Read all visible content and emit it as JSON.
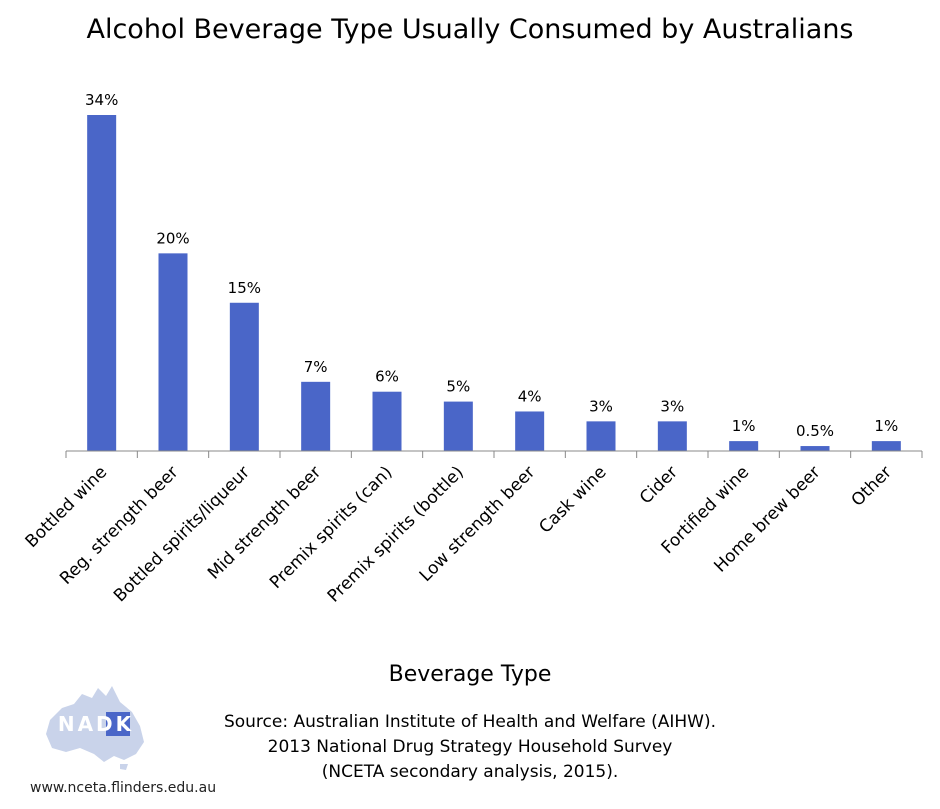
{
  "chart_data": {
    "type": "bar",
    "title": "Alcohol Beverage Type Usually Consumed by Australians",
    "xlabel": "Beverage Type",
    "ylabel": "",
    "categories": [
      "Bottled wine",
      "Reg. strength beer",
      "Bottled spirits/liqueur",
      "Mid strength beer",
      "Premix spirits (can)",
      "Premix spirits (bottle)",
      "Low strength beer",
      "Cask wine",
      "Cider",
      "Fortified wine",
      "Home brew beer",
      "Other"
    ],
    "values": [
      34,
      20,
      15,
      7,
      6,
      5,
      4,
      3,
      3,
      1,
      0.5,
      1
    ],
    "value_labels": [
      "34%",
      "20%",
      "15%",
      "7%",
      "6%",
      "5%",
      "4%",
      "3%",
      "3%",
      "1%",
      "0.5%",
      "1%"
    ],
    "ylim": [
      0,
      34
    ],
    "grid": false,
    "bar_color": "#4a66c8"
  },
  "source": {
    "lines": [
      "Source: Australian Institute of Health and Welfare (AIHW).",
      "2013 National Drug Strategy Household Survey",
      "(NCETA secondary analysis, 2015)."
    ]
  },
  "logo": {
    "text": "NADK",
    "icon": "australia-map-icon"
  },
  "website": "www.nceta.flinders.edu.au"
}
